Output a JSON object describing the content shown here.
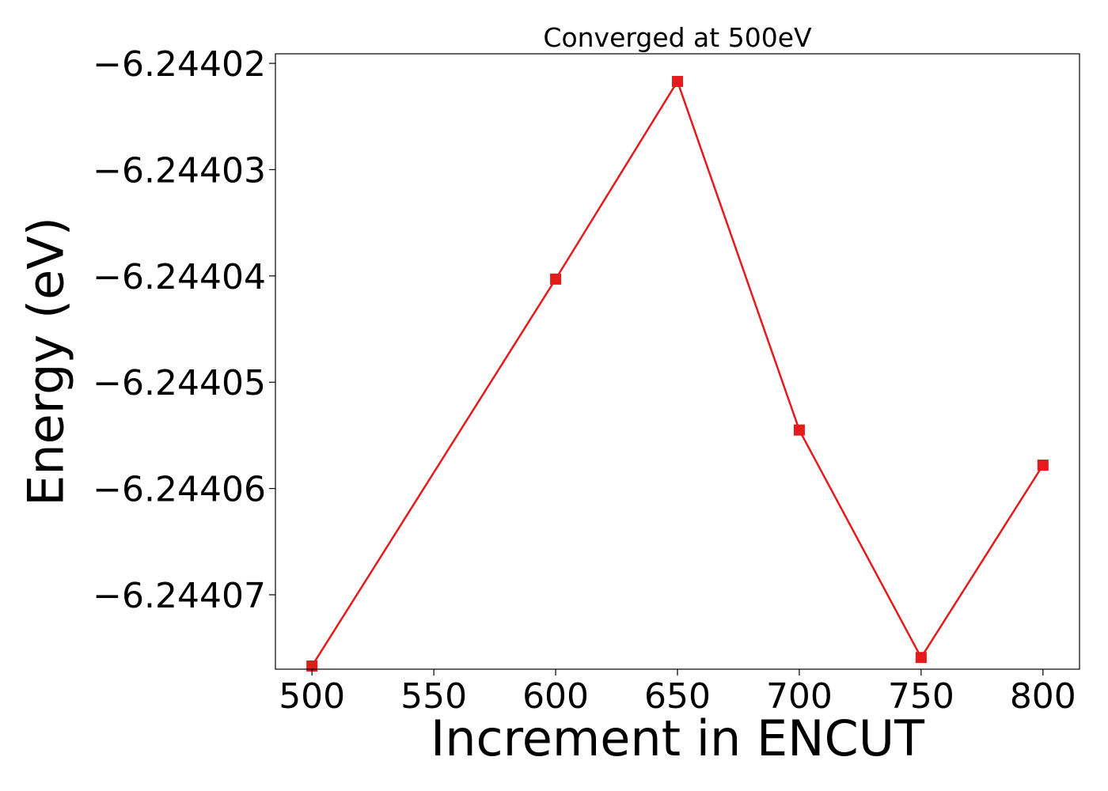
{
  "chart_data": {
    "type": "line",
    "title": "Converged at 500eV",
    "xlabel": "Increment in ENCUT",
    "ylabel": "Energy (eV)",
    "xlim": [
      485,
      815
    ],
    "ylim": [
      -6.244077,
      -6.2440191
    ],
    "xticks": [
      500,
      550,
      600,
      650,
      700,
      750,
      800
    ],
    "xtick_labels": [
      "500",
      "550",
      "600",
      "650",
      "700",
      "750",
      "800"
    ],
    "yticks": [
      -6.24402,
      -6.24403,
      -6.24404,
      -6.24405,
      -6.24406,
      -6.24407
    ],
    "ytick_labels": [
      "−6.24402",
      "−6.24403",
      "−6.24404",
      "−6.24405",
      "−6.24406",
      "−6.24407"
    ],
    "grid": false,
    "series": [
      {
        "color": "#e41a1c",
        "marker": "square",
        "x": [
          500,
          600,
          650,
          700,
          750,
          800
        ],
        "y": [
          -6.2440767,
          -6.2440403,
          -6.2440217,
          -6.2440545,
          -6.2440759,
          -6.2440578
        ]
      }
    ]
  }
}
